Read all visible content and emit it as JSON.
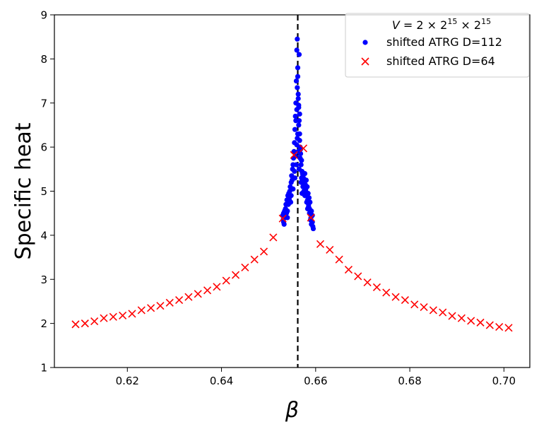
{
  "chart_data": {
    "type": "scatter",
    "title": "",
    "xlabel": "β",
    "ylabel": "Specific heat",
    "xlim": [
      0.6045,
      0.7055
    ],
    "ylim": [
      1,
      9
    ],
    "xticks": [
      0.62,
      0.64,
      0.66,
      0.68,
      0.7
    ],
    "xtick_labels": [
      "0.62",
      "0.64",
      "0.66",
      "0.68",
      "0.70"
    ],
    "yticks": [
      1,
      2,
      3,
      4,
      5,
      6,
      7,
      8,
      9
    ],
    "ytick_labels": [
      "1",
      "2",
      "3",
      "4",
      "5",
      "6",
      "7",
      "8",
      "9"
    ],
    "grid": false,
    "critical_line_x": 0.6562,
    "legend": {
      "placement": "top-right",
      "title_parts": {
        "v": "V",
        "eq": " = 2 × 2",
        "exp1": "15",
        "times": " × 2",
        "exp2": "15"
      },
      "entries": [
        {
          "label": "shifted ATRG D=112",
          "marker": "dot",
          "color": "#0000ff"
        },
        {
          "label": "shifted ATRG D=64",
          "marker": "x",
          "color": "#ff0000"
        }
      ]
    },
    "series": [
      {
        "name": "shifted ATRG D=112",
        "marker": "dot",
        "color": "#0000ff",
        "x": [
          0.653,
          0.6531,
          0.6532,
          0.6533,
          0.6534,
          0.6535,
          0.6536,
          0.6537,
          0.6538,
          0.6539,
          0.654,
          0.6541,
          0.6542,
          0.6543,
          0.6544,
          0.6545,
          0.6546,
          0.6547,
          0.6548,
          0.6549,
          0.655,
          0.6551,
          0.6552,
          0.6553,
          0.6554,
          0.6555,
          0.6556,
          0.6557,
          0.6558,
          0.6559,
          0.656,
          0.6561,
          0.6562,
          0.6563,
          0.6564,
          0.6565,
          0.6566,
          0.6567,
          0.6568,
          0.6569,
          0.657,
          0.6571,
          0.6572,
          0.6573,
          0.6574,
          0.6575,
          0.6576,
          0.6577,
          0.6578,
          0.6579,
          0.658,
          0.6581,
          0.6582,
          0.6583,
          0.6584,
          0.6585,
          0.6586,
          0.6587,
          0.6588,
          0.6589,
          0.659,
          0.6591,
          0.6592,
          0.6593,
          0.6594,
          0.6595,
          0.6532,
          0.6536,
          0.654,
          0.6544,
          0.6548,
          0.6552,
          0.6556,
          0.6559,
          0.6561,
          0.6563,
          0.6565,
          0.6567,
          0.6569,
          0.6571,
          0.6573,
          0.6575,
          0.6577,
          0.6579,
          0.6581,
          0.6583,
          0.6585,
          0.6587,
          0.6589,
          0.6591,
          0.6593,
          0.6555,
          0.6557,
          0.656,
          0.6562,
          0.6564,
          0.6566,
          0.6568,
          0.657,
          0.6572,
          0.6574,
          0.6576,
          0.6578,
          0.6558,
          0.6563,
          0.6561,
          0.6564,
          0.6566,
          0.656,
          0.6562,
          0.6565
        ],
        "y": [
          4.45,
          4.35,
          4.5,
          4.25,
          4.55,
          4.4,
          4.6,
          4.7,
          4.5,
          4.8,
          4.55,
          4.9,
          4.7,
          4.95,
          4.85,
          5.0,
          5.1,
          4.75,
          5.2,
          5.35,
          5.25,
          5.5,
          5.6,
          5.75,
          5.9,
          6.1,
          6.4,
          6.7,
          7.0,
          7.5,
          8.2,
          8.45,
          7.8,
          7.2,
          6.9,
          6.6,
          6.3,
          6.0,
          5.85,
          5.6,
          5.3,
          5.45,
          5.2,
          5.1,
          5.3,
          5.0,
          5.2,
          5.4,
          5.15,
          5.05,
          5.25,
          4.9,
          5.1,
          4.8,
          4.95,
          4.7,
          4.85,
          4.6,
          4.75,
          4.5,
          4.4,
          4.55,
          4.3,
          4.45,
          4.2,
          4.15,
          4.3,
          4.6,
          4.4,
          4.8,
          4.9,
          5.05,
          5.3,
          5.6,
          6.2,
          5.9,
          5.5,
          5.75,
          5.2,
          4.95,
          5.35,
          5.15,
          4.9,
          5.0,
          4.75,
          4.6,
          4.65,
          4.5,
          4.35,
          4.25,
          4.3,
          5.45,
          5.8,
          6.05,
          6.3,
          6.5,
          6.15,
          5.95,
          5.7,
          5.4,
          5.2,
          5.0,
          4.9,
          6.6,
          7.1,
          7.35,
          6.95,
          6.75,
          6.85,
          7.6,
          8.1
        ],
        "y_source": "approximate reading of dense cluster near critical point"
      },
      {
        "name": "shifted ATRG D=64",
        "marker": "x",
        "color": "#ff0000",
        "x": [
          0.609,
          0.611,
          0.613,
          0.615,
          0.617,
          0.619,
          0.621,
          0.623,
          0.625,
          0.627,
          0.629,
          0.631,
          0.633,
          0.635,
          0.637,
          0.639,
          0.641,
          0.643,
          0.645,
          0.647,
          0.649,
          0.651,
          0.653,
          0.6554,
          0.6574,
          0.659,
          0.661,
          0.663,
          0.665,
          0.667,
          0.669,
          0.671,
          0.673,
          0.675,
          0.677,
          0.679,
          0.681,
          0.683,
          0.685,
          0.687,
          0.689,
          0.691,
          0.693,
          0.695,
          0.697,
          0.699,
          0.701
        ],
        "y": [
          1.98,
          2.0,
          2.05,
          2.12,
          2.15,
          2.18,
          2.22,
          2.3,
          2.35,
          2.4,
          2.47,
          2.53,
          2.6,
          2.67,
          2.75,
          2.83,
          2.97,
          3.1,
          3.27,
          3.45,
          3.63,
          3.95,
          4.38,
          5.82,
          5.97,
          4.4,
          3.8,
          3.67,
          3.45,
          3.22,
          3.07,
          2.93,
          2.82,
          2.7,
          2.6,
          2.53,
          2.43,
          2.37,
          2.3,
          2.25,
          2.17,
          2.12,
          2.06,
          2.02,
          1.96,
          1.92,
          1.9
        ]
      }
    ]
  }
}
